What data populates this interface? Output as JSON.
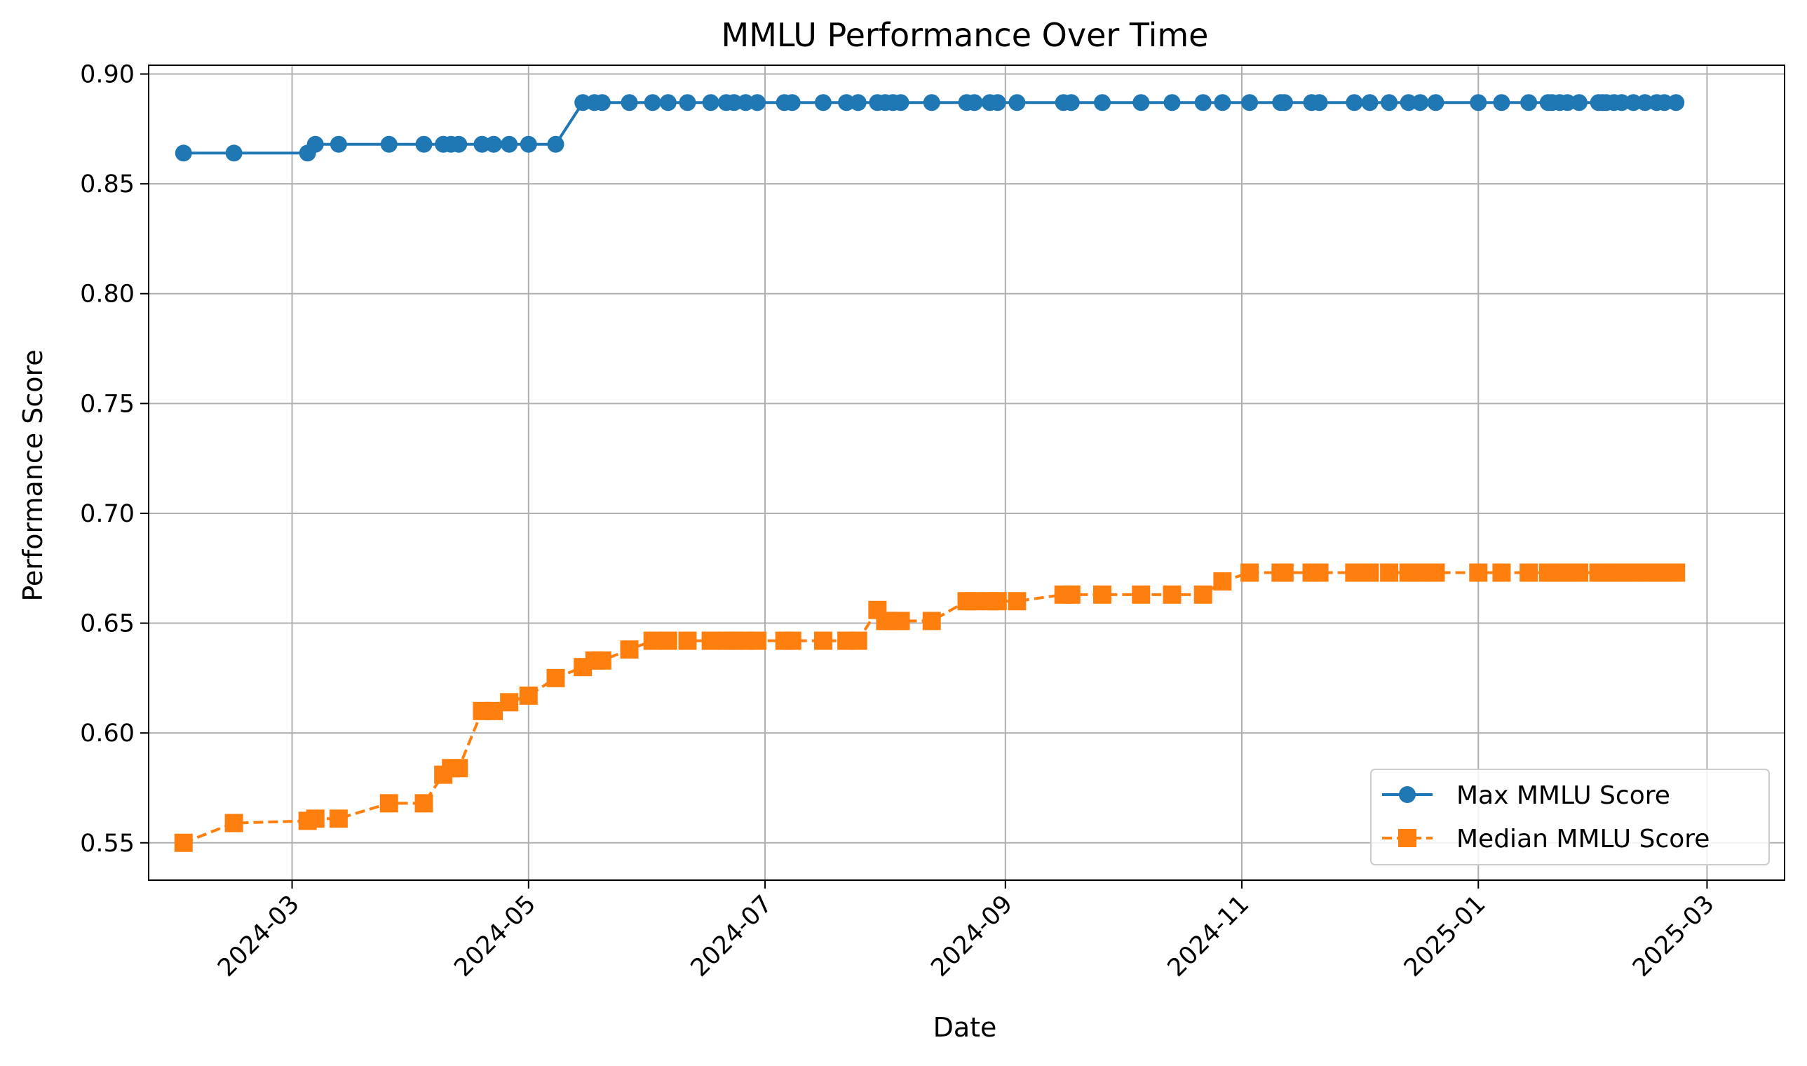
{
  "chart_data": {
    "type": "line",
    "title": "MMLU Performance Over Time",
    "xlabel": "Date",
    "ylabel": "Performance Score",
    "x_axis_kind": "date",
    "xlim": [
      "2024-01-24",
      "2025-03-21"
    ],
    "ylim": [
      0.533,
      0.904
    ],
    "x_ticks": [
      "2024-03-01",
      "2024-05-01",
      "2024-07-01",
      "2024-09-01",
      "2024-11-01",
      "2025-01-01",
      "2025-03-01"
    ],
    "x_tick_labels": [
      "2024-03",
      "2024-05",
      "2024-07",
      "2024-09",
      "2024-11",
      "2025-01",
      "2025-03"
    ],
    "y_ticks": [
      0.55,
      0.6,
      0.65,
      0.7,
      0.75,
      0.8,
      0.85,
      0.9
    ],
    "y_tick_labels": [
      "0.55",
      "0.60",
      "0.65",
      "0.70",
      "0.75",
      "0.80",
      "0.85",
      "0.90"
    ],
    "grid": true,
    "legend_position": "lower-right",
    "x": [
      "2024-02-02",
      "2024-02-15",
      "2024-03-05",
      "2024-03-07",
      "2024-03-13",
      "2024-03-26",
      "2024-04-04",
      "2024-04-09",
      "2024-04-11",
      "2024-04-13",
      "2024-04-19",
      "2024-04-22",
      "2024-04-26",
      "2024-05-01",
      "2024-05-08",
      "2024-05-15",
      "2024-05-18",
      "2024-05-20",
      "2024-05-27",
      "2024-06-02",
      "2024-06-06",
      "2024-06-11",
      "2024-06-17",
      "2024-06-21",
      "2024-06-23",
      "2024-06-26",
      "2024-06-29",
      "2024-07-06",
      "2024-07-08",
      "2024-07-16",
      "2024-07-22",
      "2024-07-25",
      "2024-07-30",
      "2024-08-01",
      "2024-08-03",
      "2024-08-05",
      "2024-08-13",
      "2024-08-22",
      "2024-08-24",
      "2024-08-28",
      "2024-08-30",
      "2024-09-04",
      "2024-09-16",
      "2024-09-18",
      "2024-09-26",
      "2024-10-06",
      "2024-10-14",
      "2024-10-22",
      "2024-10-27",
      "2024-11-03",
      "2024-11-11",
      "2024-11-12",
      "2024-11-19",
      "2024-11-21",
      "2024-11-30",
      "2024-12-04",
      "2024-12-09",
      "2024-12-14",
      "2024-12-17",
      "2024-12-21",
      "2025-01-01",
      "2025-01-07",
      "2025-01-14",
      "2025-01-19",
      "2025-01-20",
      "2025-01-22",
      "2025-01-24",
      "2025-01-27",
      "2025-02-01",
      "2025-02-02",
      "2025-02-03",
      "2025-02-05",
      "2025-02-07",
      "2025-02-10",
      "2025-02-13",
      "2025-02-16",
      "2025-02-18",
      "2025-02-21"
    ],
    "series": [
      {
        "name": "Max MMLU Score",
        "color": "#1f77b4",
        "marker": "circle",
        "line_style": "solid",
        "values": [
          0.864,
          0.864,
          0.864,
          0.868,
          0.868,
          0.868,
          0.868,
          0.868,
          0.868,
          0.868,
          0.868,
          0.868,
          0.868,
          0.868,
          0.868,
          0.887,
          0.887,
          0.887,
          0.887,
          0.887,
          0.887,
          0.887,
          0.887,
          0.887,
          0.887,
          0.887,
          0.887,
          0.887,
          0.887,
          0.887,
          0.887,
          0.887,
          0.887,
          0.887,
          0.887,
          0.887,
          0.887,
          0.887,
          0.887,
          0.887,
          0.887,
          0.887,
          0.887,
          0.887,
          0.887,
          0.887,
          0.887,
          0.887,
          0.887,
          0.887,
          0.887,
          0.887,
          0.887,
          0.887,
          0.887,
          0.887,
          0.887,
          0.887,
          0.887,
          0.887,
          0.887,
          0.887,
          0.887,
          0.887,
          0.887,
          0.887,
          0.887,
          0.887,
          0.887,
          0.887,
          0.887,
          0.887,
          0.887,
          0.887,
          0.887,
          0.887,
          0.887,
          0.887
        ]
      },
      {
        "name": "Median MMLU Score",
        "color": "#ff7f0e",
        "marker": "square",
        "line_style": "dashed",
        "values": [
          0.55,
          0.559,
          0.56,
          0.561,
          0.561,
          0.568,
          0.568,
          0.581,
          0.584,
          0.584,
          0.61,
          0.61,
          0.614,
          0.617,
          0.625,
          0.63,
          0.633,
          0.633,
          0.638,
          0.642,
          0.642,
          0.642,
          0.642,
          0.642,
          0.642,
          0.642,
          0.642,
          0.642,
          0.642,
          0.642,
          0.642,
          0.642,
          0.656,
          0.651,
          0.651,
          0.651,
          0.651,
          0.66,
          0.66,
          0.66,
          0.66,
          0.66,
          0.663,
          0.663,
          0.663,
          0.663,
          0.663,
          0.663,
          0.669,
          0.673,
          0.673,
          0.673,
          0.673,
          0.673,
          0.673,
          0.673,
          0.673,
          0.673,
          0.673,
          0.673,
          0.673,
          0.673,
          0.673,
          0.673,
          0.673,
          0.673,
          0.673,
          0.673,
          0.673,
          0.673,
          0.673,
          0.673,
          0.673,
          0.673,
          0.673,
          0.673,
          0.673,
          0.673
        ]
      }
    ]
  }
}
